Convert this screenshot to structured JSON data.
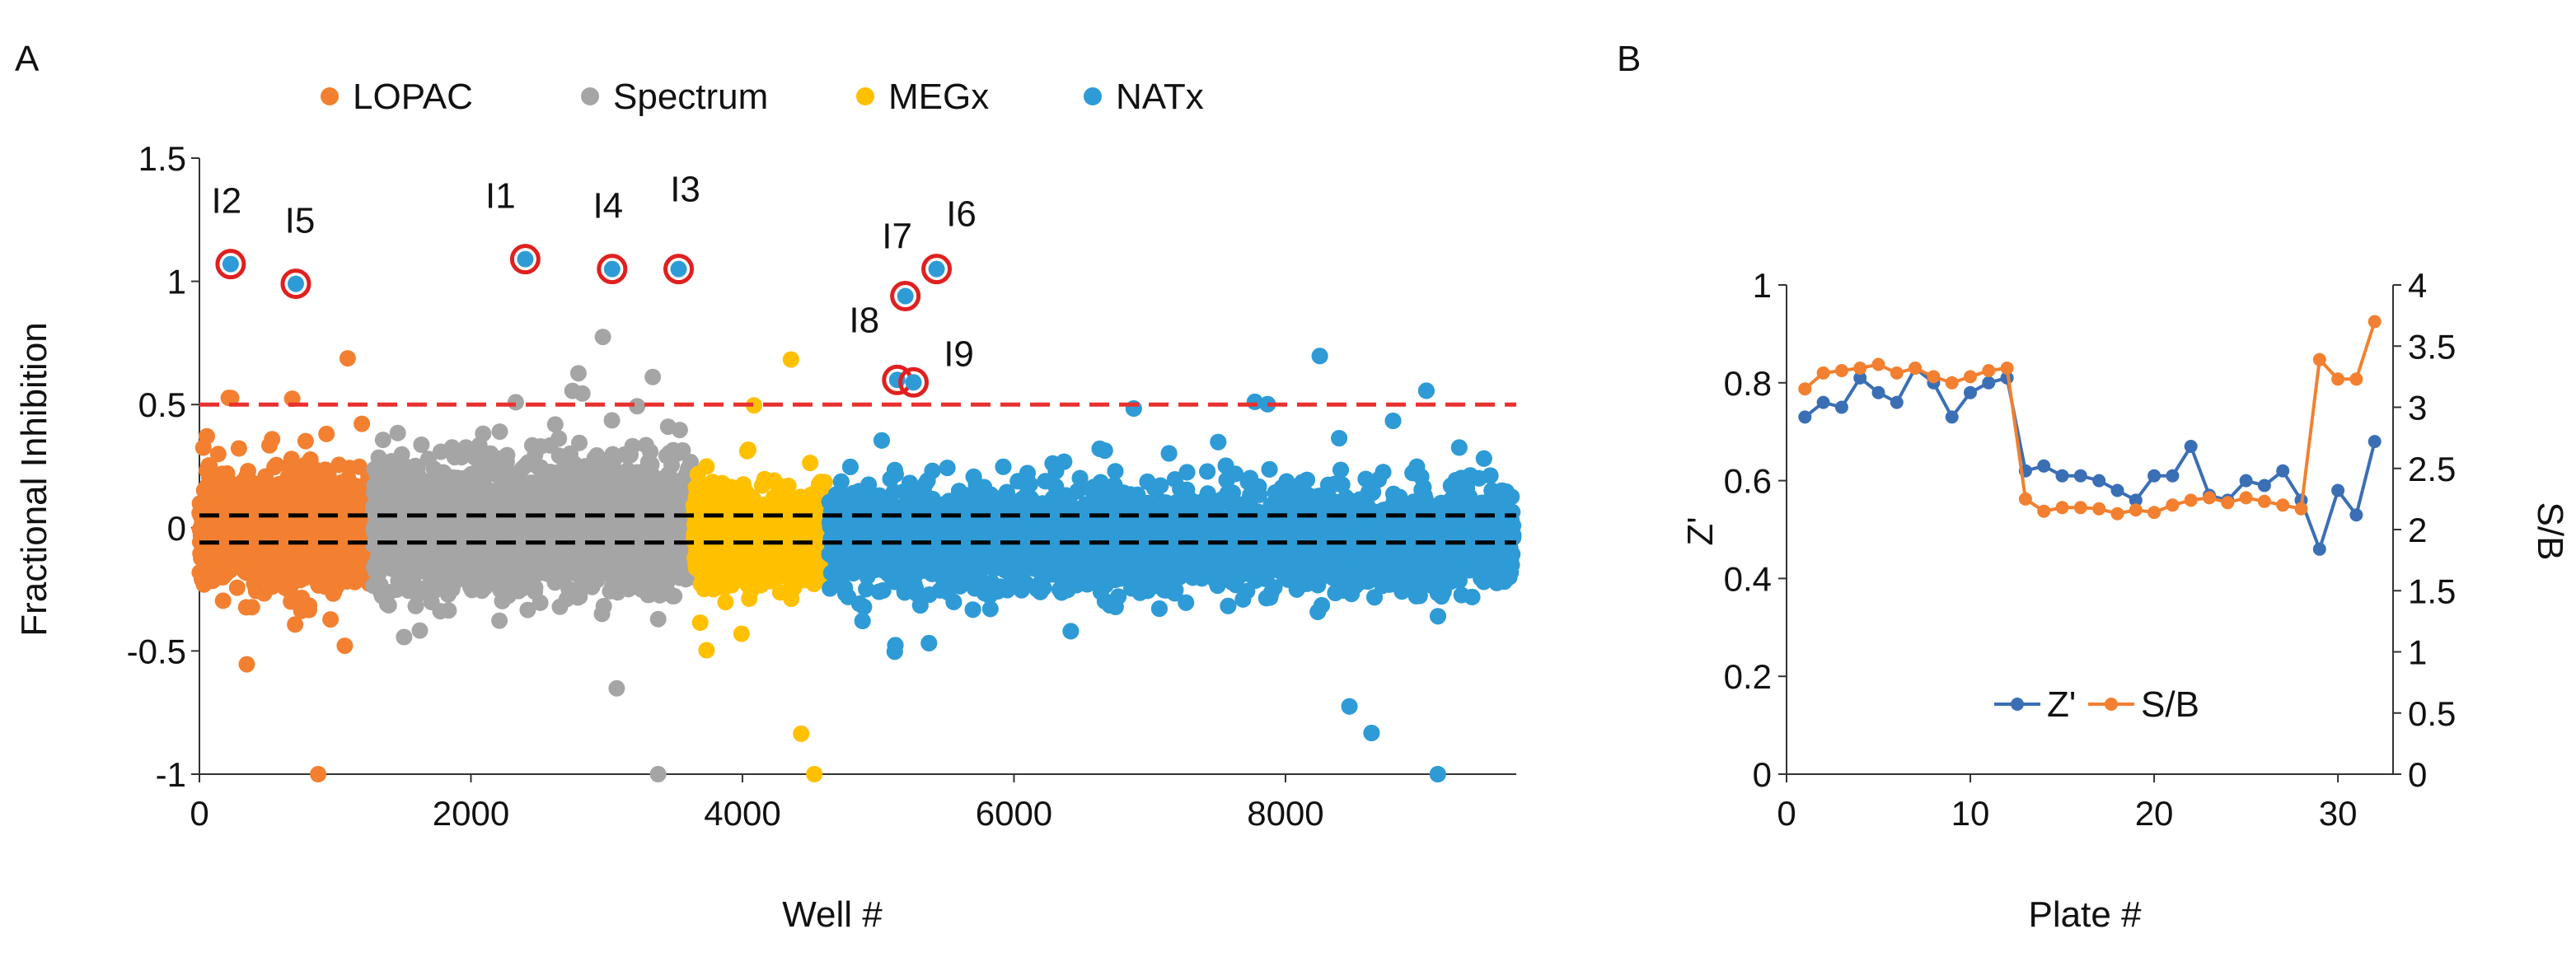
{
  "panels": {
    "a_label": "A",
    "b_label": "B"
  },
  "chart_data": [
    {
      "panel": "A",
      "type": "scatter",
      "xlabel": "Well #",
      "ylabel": "Fractional Inhibition",
      "xlim": [
        0,
        9700
      ],
      "ylim": [
        -1,
        1.5
      ],
      "xticks": [
        0,
        2000,
        4000,
        6000,
        8000
      ],
      "yticks": [
        -1,
        -0.5,
        0,
        0.5,
        1,
        1.5
      ],
      "ytick_labels": [
        "-1",
        "-0.5",
        "0",
        "0.5",
        "1",
        "1.5"
      ],
      "grid": false,
      "legend_position": "top",
      "series": [
        {
          "name": "LOPAC",
          "color": "#F28030",
          "x_range": [
            0,
            1280
          ],
          "mean": 0.0,
          "spread": 0.1,
          "n": 1280
        },
        {
          "name": "Spectrum",
          "color": "#A5A5A5",
          "x_range": [
            1280,
            3640
          ],
          "mean": 0.0,
          "spread": 0.12,
          "n": 2360
        },
        {
          "name": "MEGx",
          "color": "#FFC000",
          "x_range": [
            3640,
            4640
          ],
          "mean": -0.05,
          "spread": 0.09,
          "n": 1000
        },
        {
          "name": "NATx",
          "color": "#2E9BD6",
          "x_range": [
            4640,
            9680
          ],
          "mean": -0.05,
          "spread": 0.1,
          "n": 5040
        }
      ],
      "thresholds": [
        {
          "y": 0.5,
          "color": "#E8312F",
          "style": "dashed"
        },
        {
          "y": 0.05,
          "color": "#000000",
          "style": "dashed"
        },
        {
          "y": -0.06,
          "color": "#000000",
          "style": "dashed"
        }
      ],
      "hits": [
        {
          "label": "I2",
          "x": 230,
          "y": 1.07
        },
        {
          "label": "I5",
          "x": 710,
          "y": 0.99
        },
        {
          "label": "I1",
          "x": 2400,
          "y": 1.09
        },
        {
          "label": "I4",
          "x": 3040,
          "y": 1.05
        },
        {
          "label": "I3",
          "x": 3530,
          "y": 1.05
        },
        {
          "label": "I7",
          "x": 5200,
          "y": 0.94
        },
        {
          "label": "I6",
          "x": 5430,
          "y": 1.05
        },
        {
          "label": "I8",
          "x": 5140,
          "y": 0.6
        },
        {
          "label": "I9",
          "x": 5260,
          "y": 0.59
        }
      ]
    },
    {
      "panel": "B",
      "type": "line",
      "xlabel": "Plate #",
      "ylabel": "Z'",
      "y2label": "S/B",
      "xlim": [
        0,
        33
      ],
      "ylim": [
        0,
        1
      ],
      "y2lim": [
        0,
        4
      ],
      "xticks": [
        0,
        10,
        20,
        30
      ],
      "yticks": [
        0,
        0.2,
        0.4,
        0.6,
        0.8,
        1
      ],
      "y2ticks": [
        0,
        0.5,
        1,
        1.5,
        2,
        2.5,
        3,
        3.5,
        4
      ],
      "grid": false,
      "legend_position": "bottom-center",
      "x": [
        1,
        2,
        3,
        4,
        5,
        6,
        7,
        8,
        9,
        10,
        11,
        12,
        13,
        14,
        15,
        16,
        17,
        18,
        19,
        20,
        21,
        22,
        23,
        24,
        25,
        26,
        27,
        28,
        29,
        30,
        31,
        32
      ],
      "series": [
        {
          "name": "Z'",
          "axis": "left",
          "color": "#3A6FB5",
          "values": [
            0.73,
            0.76,
            0.75,
            0.81,
            0.78,
            0.76,
            0.83,
            0.8,
            0.73,
            0.78,
            0.8,
            0.81,
            0.62,
            0.63,
            0.61,
            0.61,
            0.6,
            0.58,
            0.56,
            0.61,
            0.61,
            0.67,
            0.57,
            0.56,
            0.6,
            0.59,
            0.62,
            0.56,
            0.46,
            0.58,
            0.53,
            0.68
          ]
        },
        {
          "name": "S/B",
          "axis": "right",
          "color": "#F28030",
          "values": [
            3.15,
            3.28,
            3.3,
            3.32,
            3.35,
            3.28,
            3.32,
            3.25,
            3.2,
            3.25,
            3.3,
            3.32,
            2.25,
            2.15,
            2.18,
            2.18,
            2.17,
            2.13,
            2.16,
            2.14,
            2.2,
            2.24,
            2.26,
            2.22,
            2.26,
            2.23,
            2.2,
            2.17,
            3.39,
            3.23,
            3.23,
            3.7
          ]
        }
      ]
    }
  ]
}
